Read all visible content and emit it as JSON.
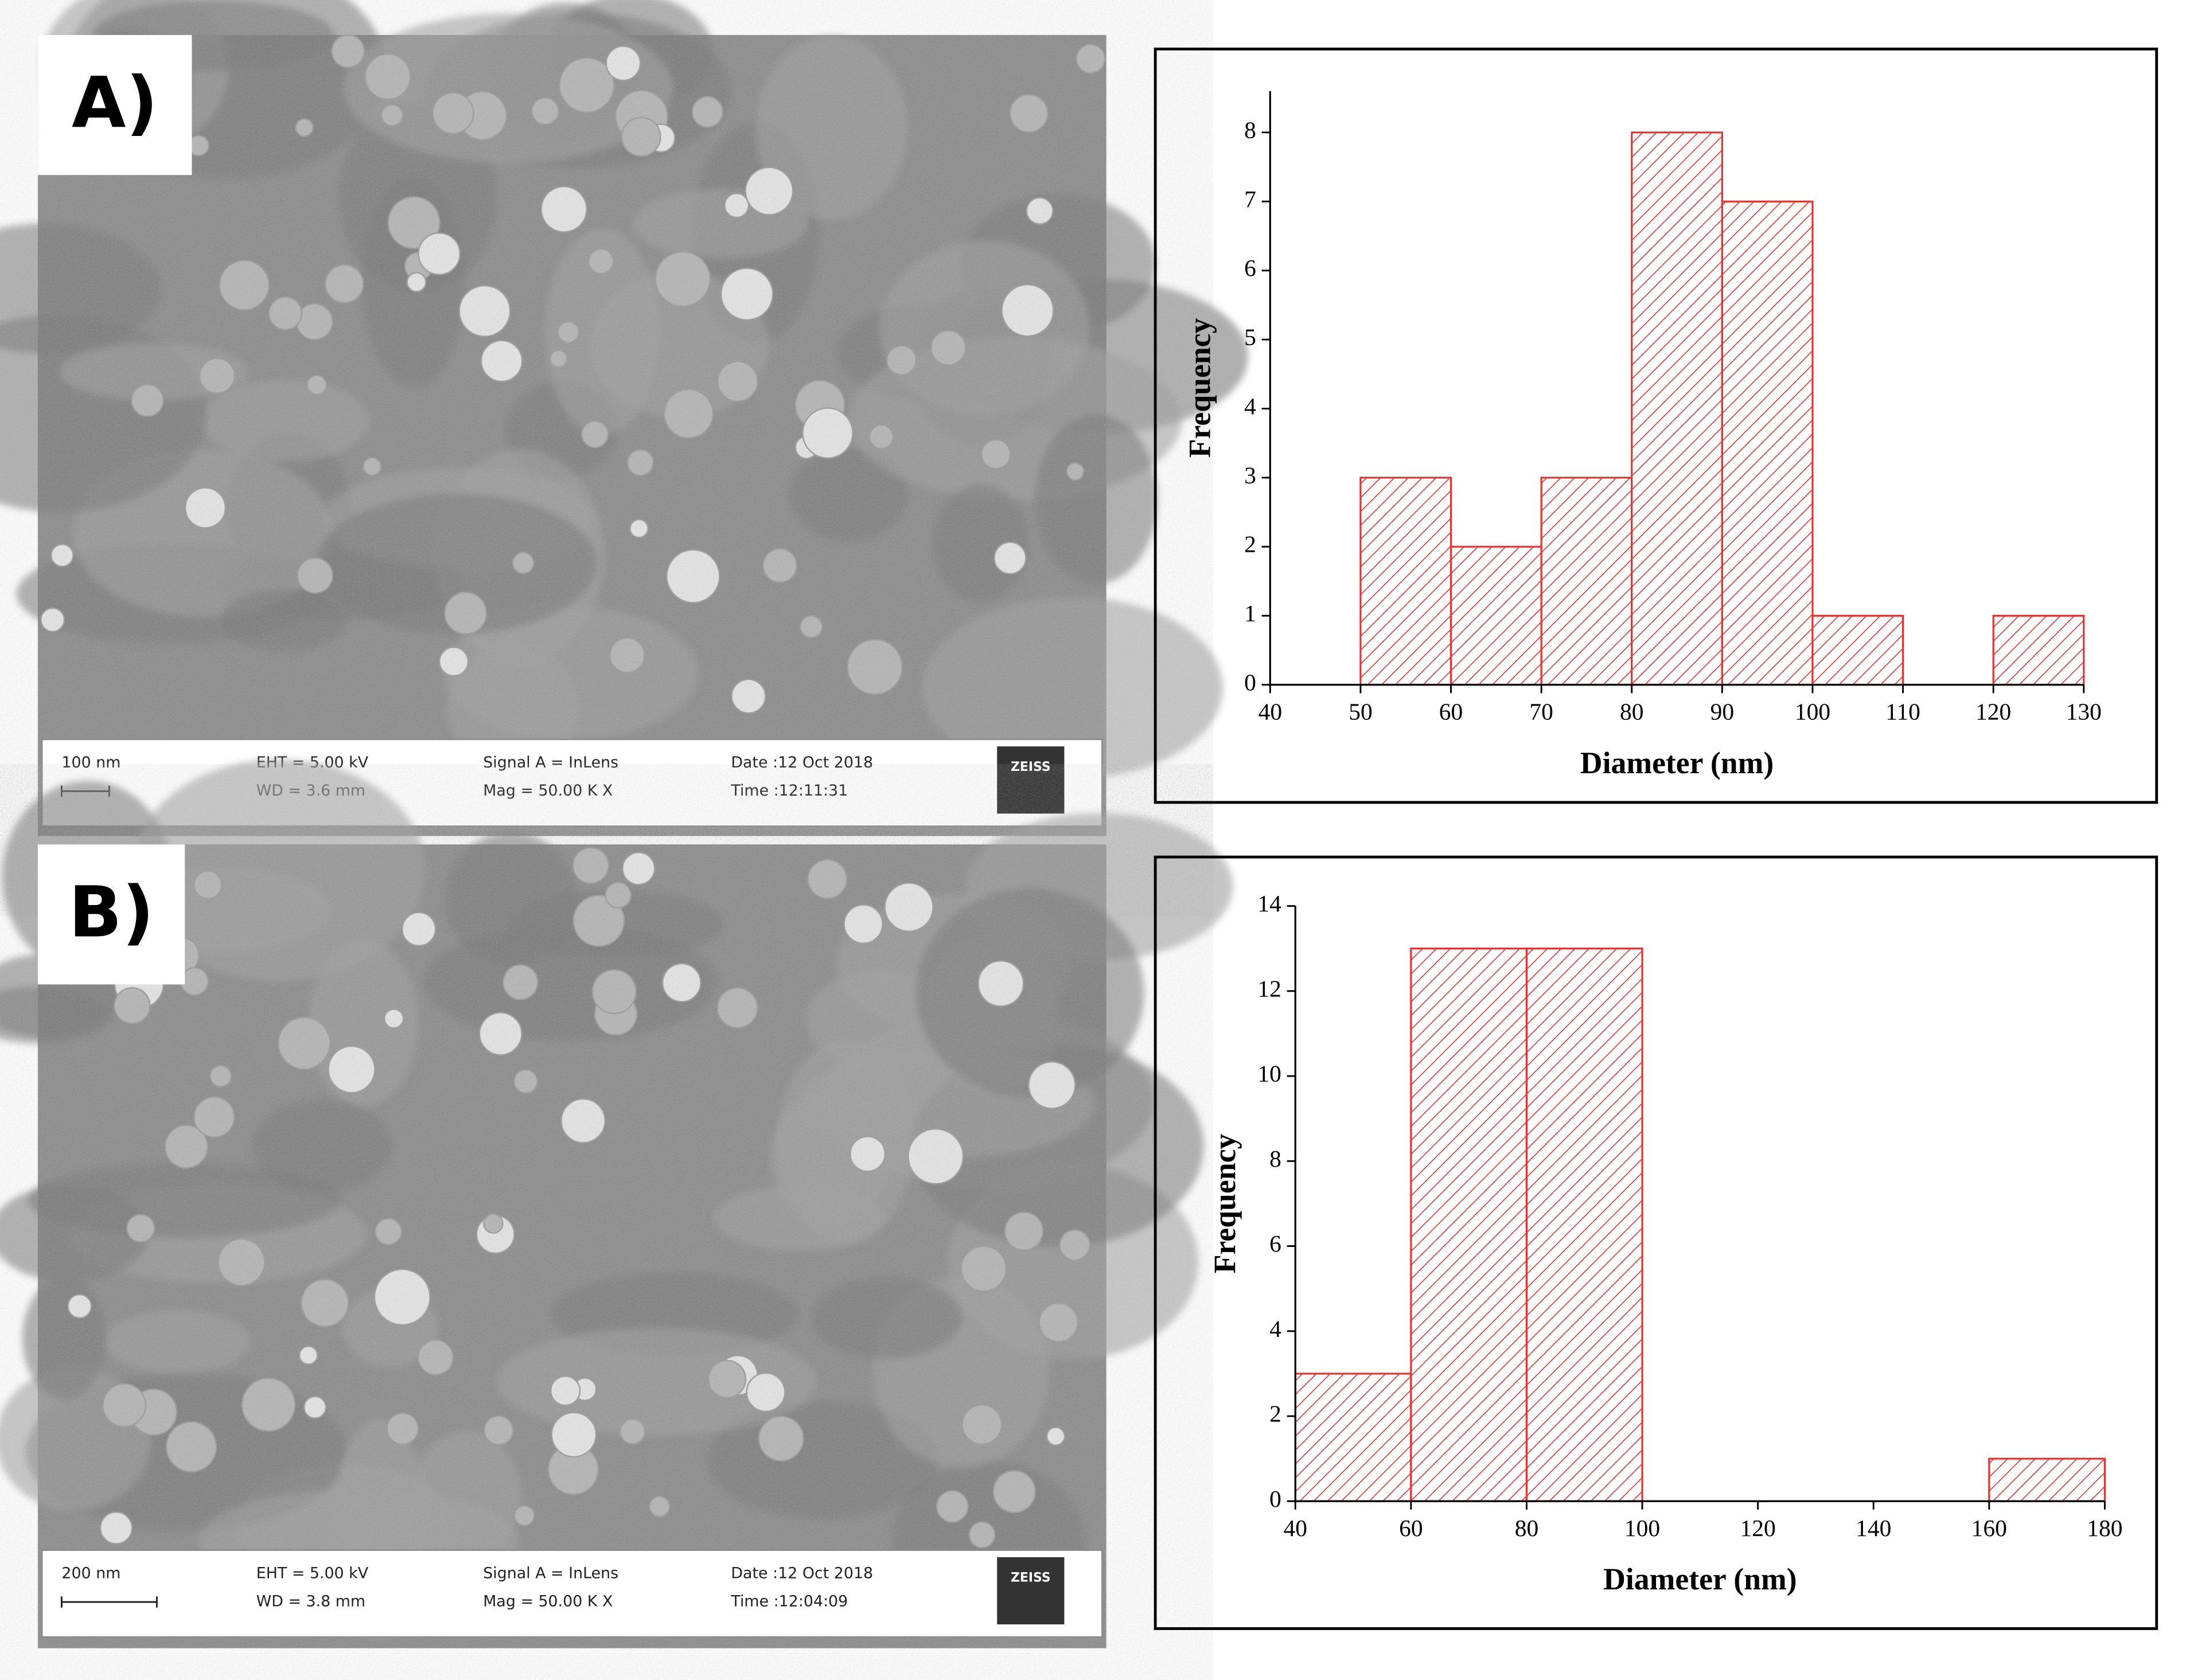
{
  "panels": [
    {
      "label": "A)",
      "info": [
        "100 nm",
        "EHT = 5.00 kV",
        "WD = 3.6 mm",
        "Signal A = InLens",
        "Mag = 50.00 K X",
        "Date :12 Oct 2018",
        "Time :12:11:31",
        "ZEISS"
      ]
    },
    {
      "label": "B)",
      "info": [
        "200 nm",
        "EHT = 5.00 kV",
        "WD = 3.8 mm",
        "Signal A = InLens",
        "Mag = 50.00 K X",
        "Date :12 Oct 2018",
        "Time :12:04:09",
        "ZEISS"
      ]
    }
  ],
  "chart_data": [
    {
      "type": "histogram",
      "xlabel": "Diameter (nm)",
      "ylabel": "Frequency",
      "bins": [
        50,
        60,
        70,
        80,
        90,
        100,
        110,
        120,
        130
      ],
      "values": [
        3,
        2,
        3,
        8,
        7,
        1,
        0,
        1
      ],
      "color": "#e8322f",
      "xlim": [
        40,
        130
      ],
      "ylim": [
        0,
        8.6
      ],
      "xticks": [
        40,
        50,
        60,
        70,
        80,
        90,
        100,
        110,
        120,
        130
      ],
      "yticks": [
        0,
        1,
        2,
        3,
        4,
        5,
        6,
        7,
        8
      ]
    },
    {
      "type": "histogram",
      "xlabel": "Diameter (nm)",
      "ylabel": "Frequency",
      "bins": [
        40,
        60,
        80,
        100,
        120,
        140,
        160,
        180
      ],
      "values": [
        3,
        13,
        13,
        0,
        0,
        0,
        1
      ],
      "color": "#e8322f",
      "xlim": [
        40,
        180
      ],
      "ylim": [
        0,
        14
      ],
      "xticks": [
        40,
        60,
        80,
        100,
        120,
        140,
        160,
        180
      ],
      "yticks": [
        0,
        2,
        4,
        6,
        8,
        10,
        12,
        14
      ]
    }
  ]
}
